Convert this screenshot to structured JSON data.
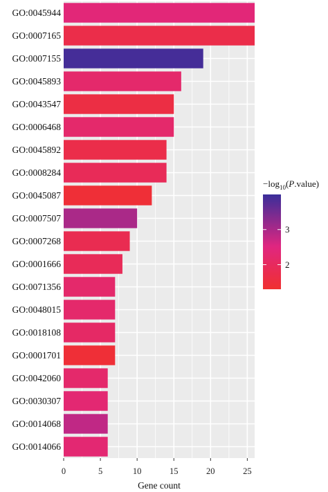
{
  "chart_data": {
    "type": "bar",
    "orientation": "horizontal",
    "xlabel": "Gene count",
    "ylabel": "",
    "xlim": [
      0,
      26
    ],
    "x_ticks": [
      0,
      5,
      10,
      15,
      20,
      25
    ],
    "grid": true,
    "categories": [
      "GO:0045944",
      "GO:0007165",
      "GO:0007155",
      "GO:0045893",
      "GO:0043547",
      "GO:0006468",
      "GO:0045892",
      "GO:0008284",
      "GO:0045087",
      "GO:0007507",
      "GO:0007268",
      "GO:0001666",
      "GO:0071356",
      "GO:0048015",
      "GO:0018108",
      "GO:0001701",
      "GO:0042060",
      "GO:0030307",
      "GO:0014068",
      "GO:0014066"
    ],
    "values": [
      26,
      26,
      19,
      16,
      15,
      15,
      14,
      14,
      12,
      10,
      9,
      8,
      7,
      7,
      7,
      7,
      6,
      6,
      6,
      6
    ],
    "color_values": [
      2.4,
      1.7,
      3.9,
      2.2,
      1.6,
      2.2,
      1.7,
      1.9,
      1.4,
      3.0,
      1.8,
      1.9,
      2.2,
      2.2,
      2.1,
      1.4,
      2.2,
      2.3,
      2.8,
      2.3
    ],
    "legend": {
      "title_prefix": "−log",
      "title_subscript": "10",
      "title_open": "(",
      "title_italic": "P",
      "title_suffix": ".value)",
      "ticks": [
        "2",
        "3"
      ],
      "range": [
        1.3,
        4.0
      ],
      "placement": "right"
    },
    "colors": {
      "low": "#f03030",
      "mid": "#e02680",
      "high": "#3a2e9a",
      "panel": "#ebebeb",
      "grid": "#ffffff"
    }
  }
}
